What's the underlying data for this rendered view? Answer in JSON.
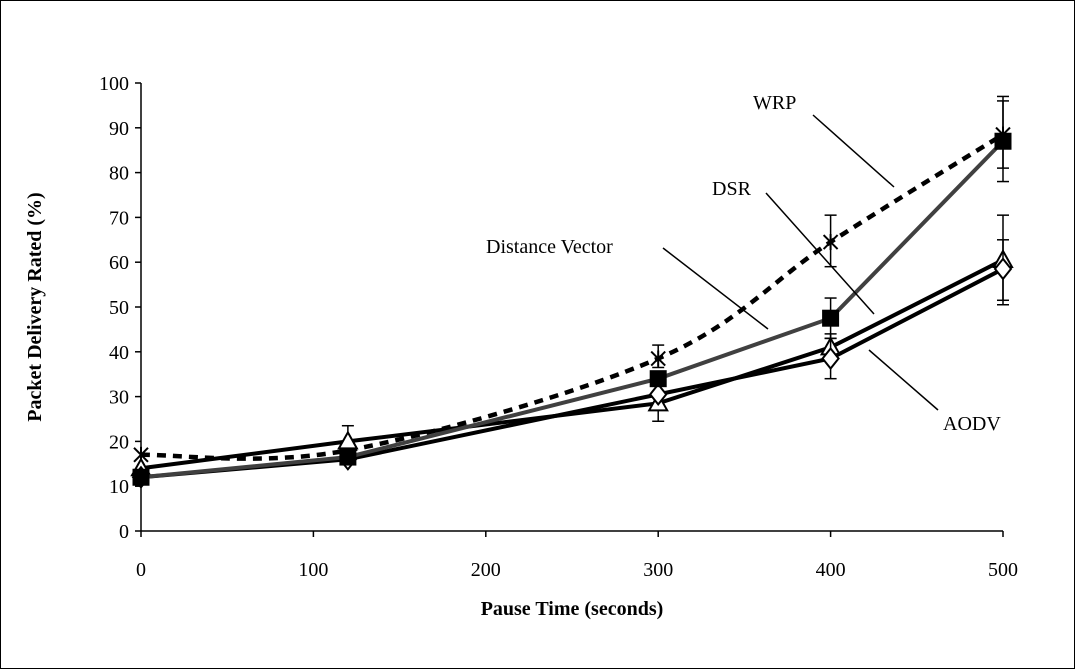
{
  "chart_data": {
    "type": "line",
    "title": "",
    "xlabel": "Pause Time (seconds)",
    "ylabel": "Packet Delivery Rated (%)",
    "xlim": [
      0,
      500
    ],
    "ylim": [
      0,
      100
    ],
    "xticks": [
      0,
      100,
      200,
      300,
      400,
      500
    ],
    "yticks": [
      0,
      10,
      20,
      30,
      40,
      50,
      60,
      70,
      80,
      90,
      100
    ],
    "grid": false,
    "legend": "callouts",
    "x": [
      0,
      120,
      300,
      400,
      500
    ],
    "series": [
      {
        "name": "WRP",
        "values": [
          17,
          18,
          38.5,
          64.5,
          88.5
        ],
        "errors": [
          [
            null,
            null
          ],
          [
            null,
            null
          ],
          [
            36.5,
            41.5
          ],
          [
            59,
            70.5
          ],
          [
            81,
            97
          ]
        ],
        "marker": "star",
        "dash": "dotted",
        "color": "#000000"
      },
      {
        "name": "DSR",
        "values": [
          12,
          16.5,
          34,
          47.5,
          87
        ],
        "errors": [
          [
            null,
            null
          ],
          [
            null,
            null
          ],
          [
            null,
            null
          ],
          [
            43,
            52
          ],
          [
            78,
            96
          ]
        ],
        "marker": "square",
        "dash": "solid",
        "color": "#404040"
      },
      {
        "name": "Distance Vector",
        "values": [
          14,
          20,
          28.5,
          41,
          60.5
        ],
        "errors": [
          [
            null,
            null
          ],
          [
            17,
            23.5
          ],
          [
            24.5,
            33
          ],
          [
            38,
            44
          ],
          [
            50.5,
            70.5
          ]
        ],
        "marker": "triangle",
        "dash": "solid",
        "color": "#000000"
      },
      {
        "name": "AODV",
        "values": [
          12,
          16,
          30.5,
          38.5,
          58.5
        ],
        "errors": [
          [
            null,
            null
          ],
          [
            null,
            null
          ],
          [
            null,
            null
          ],
          [
            34,
            43
          ],
          [
            51.5,
            65
          ]
        ],
        "marker": "diamond",
        "dash": "solid",
        "color": "#000000"
      }
    ],
    "annotations": [
      "WRP",
      "DSR",
      "Distance Vector",
      "AODV"
    ]
  }
}
